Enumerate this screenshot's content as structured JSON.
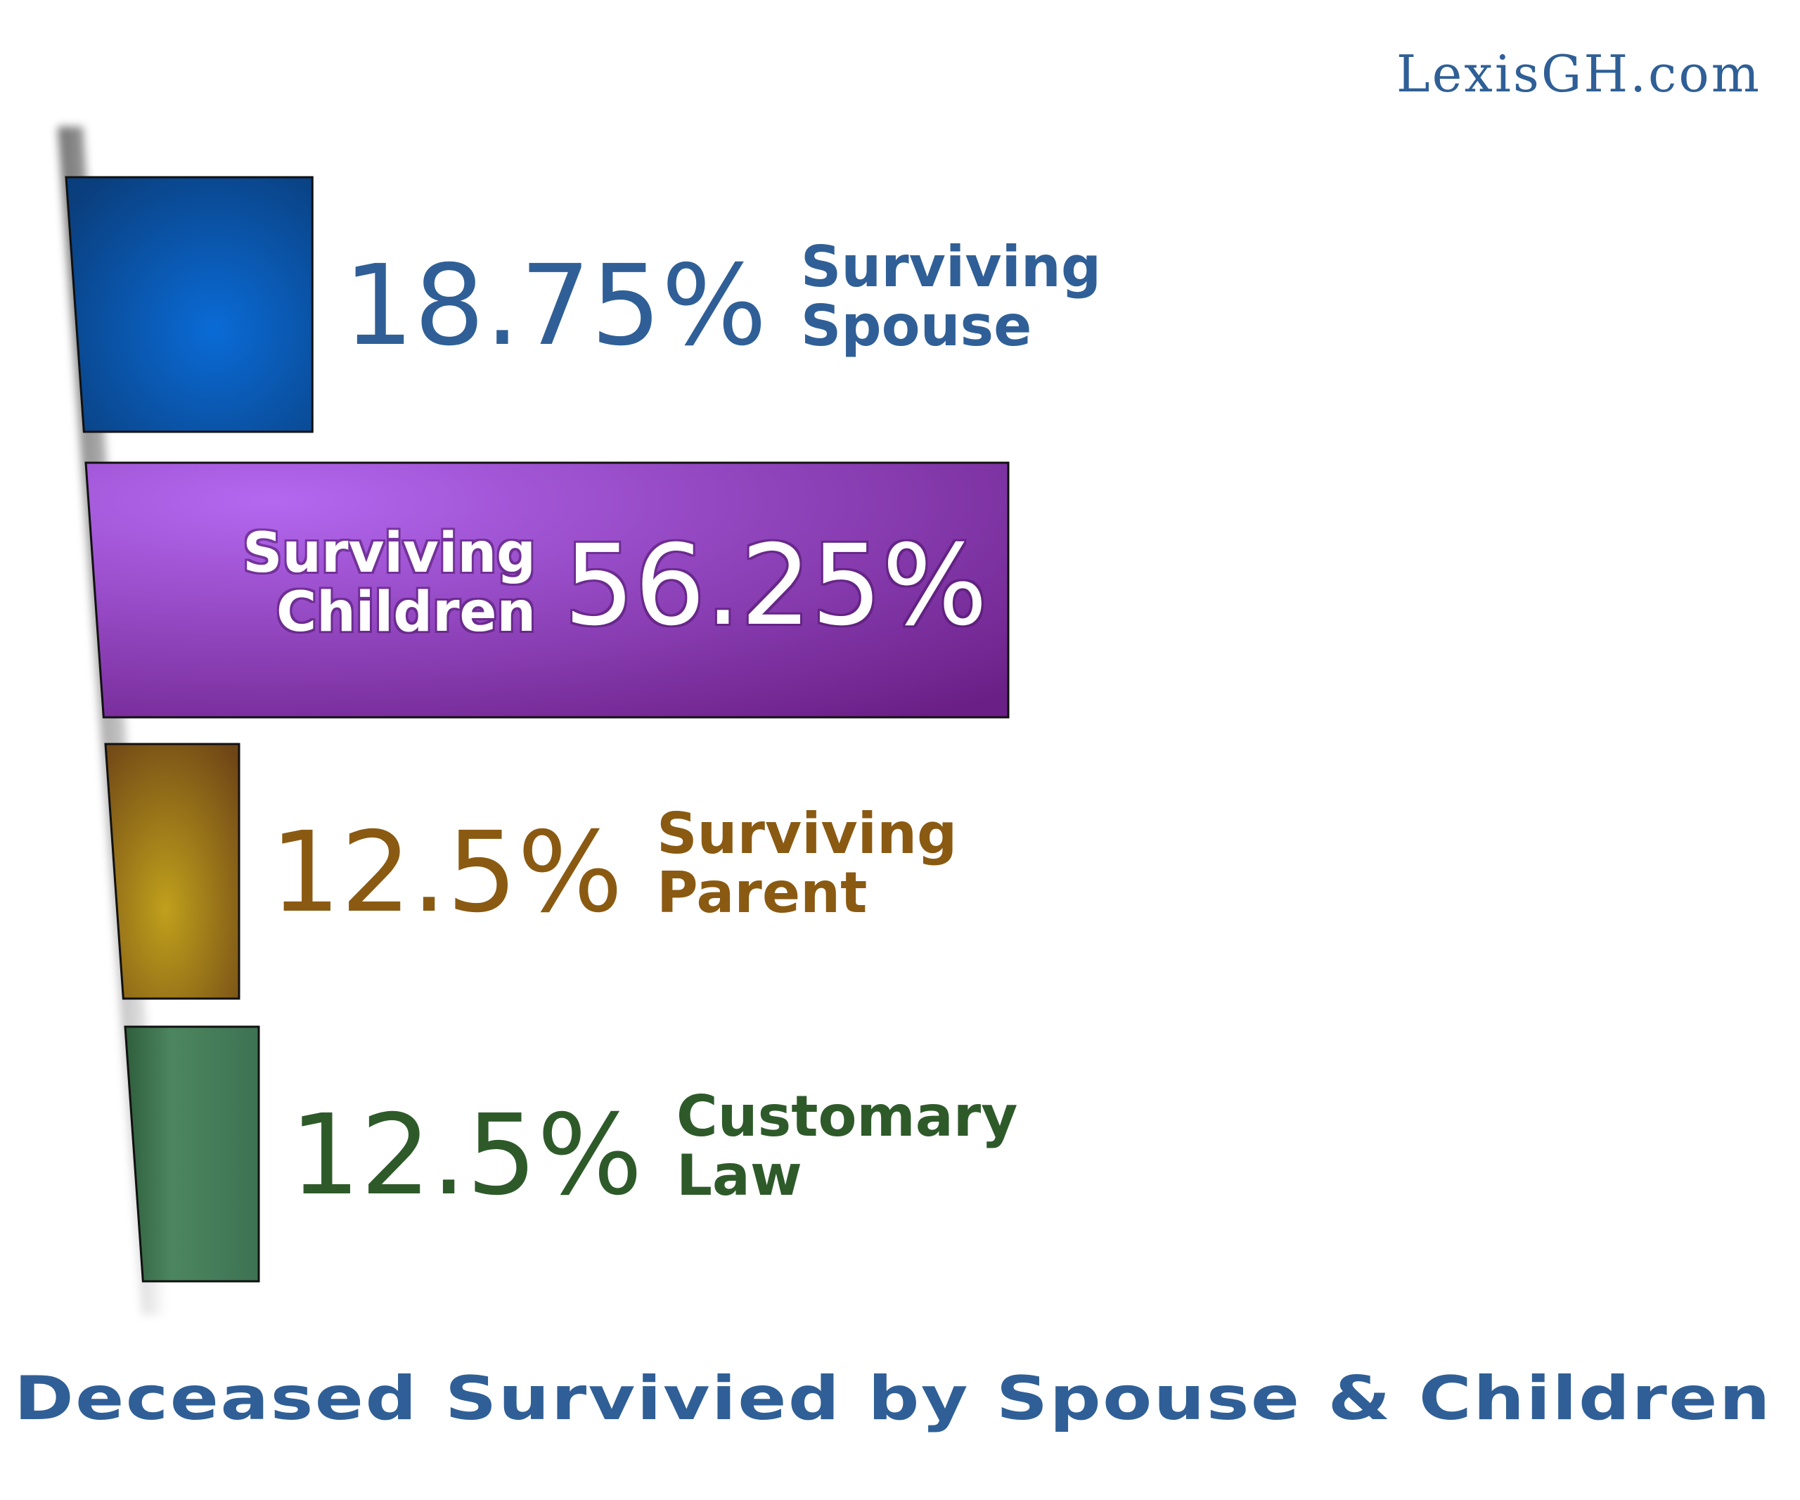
{
  "watermark": "LexisGH.com",
  "chart_data": {
    "type": "bar",
    "orientation": "horizontal",
    "title": "Deceased Survivied by Spouse & Children",
    "xlim": [
      0,
      56.25
    ],
    "bars": [
      {
        "category": [
          "Surviving",
          "Spouse"
        ],
        "value": 18.75,
        "value_label": "18.75%",
        "color": "#2f5f96",
        "fill": "#0d5fb8"
      },
      {
        "category": [
          "Surviving",
          "Children"
        ],
        "value": 56.25,
        "value_label": "56.25%",
        "color": "#ffffff",
        "fill": "#8a3fc4"
      },
      {
        "category": [
          "Surviving",
          "Parent"
        ],
        "value": 12.5,
        "value_label": "12.5%",
        "color": "#8a5a12",
        "fill": "#9a6a14"
      },
      {
        "category": [
          "Customary",
          "Law"
        ],
        "value": 12.5,
        "value_label": "12.5%",
        "color": "#2e5a2a",
        "fill": "#3e7350"
      }
    ]
  }
}
